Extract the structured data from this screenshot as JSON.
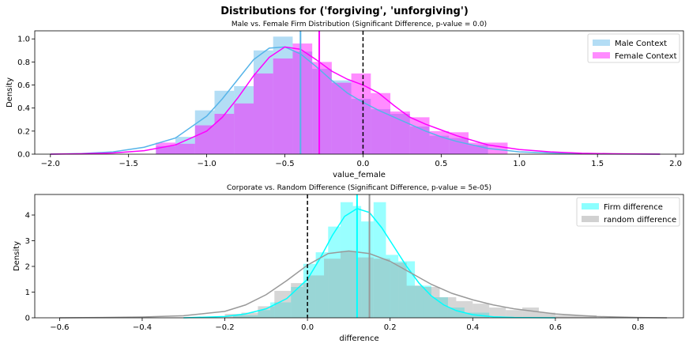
{
  "figure": {
    "suptitle": "Distributions for ('forgiving', 'unforgiving')"
  },
  "chart_data": [
    {
      "type": "bar",
      "title": "Male vs. Female Firm Distribution (Significant Difference, p-value = 0.0)",
      "xlabel": "value_female",
      "ylabel": "Density",
      "xlim": [
        -2.1,
        2.05
      ],
      "ylim": [
        0,
        1.07
      ],
      "xticks": [
        -2.0,
        -1.5,
        -1.0,
        -0.5,
        0.0,
        0.5,
        1.0,
        1.5,
        2.0
      ],
      "xtick_labels": [
        "−2.0",
        "−1.5",
        "−1.0",
        "−0.5",
        "0.0",
        "0.5",
        "1.0",
        "1.5",
        "2.0"
      ],
      "yticks": [
        0.0,
        0.2,
        0.4,
        0.6,
        0.8,
        1.0
      ],
      "ytick_labels": [
        "0.0",
        "0.2",
        "0.4",
        "0.6",
        "0.8",
        "1.0"
      ],
      "legend_position": "top-right",
      "series": [
        {
          "name": "Male Context",
          "color": "#56b4e9",
          "bins": [
            [
              -1.325,
              -1.2,
              0.07
            ],
            [
              -1.2,
              -1.075,
              0.15
            ],
            [
              -1.075,
              -0.95,
              0.38
            ],
            [
              -0.95,
              -0.825,
              0.55
            ],
            [
              -0.825,
              -0.7,
              0.59
            ],
            [
              -0.7,
              -0.575,
              0.9
            ],
            [
              -0.575,
              -0.45,
              1.02
            ],
            [
              -0.45,
              -0.325,
              0.89
            ],
            [
              -0.325,
              -0.2,
              0.74
            ],
            [
              -0.2,
              -0.075,
              0.64
            ],
            [
              -0.075,
              0.05,
              0.48
            ],
            [
              0.05,
              0.175,
              0.39
            ],
            [
              0.175,
              0.3,
              0.35
            ],
            [
              0.3,
              0.425,
              0.24
            ],
            [
              0.425,
              0.55,
              0.16
            ],
            [
              0.55,
              0.675,
              0.14
            ],
            [
              0.675,
              0.8,
              0.08
            ]
          ],
          "kde_x": [
            -2.0,
            -1.8,
            -1.6,
            -1.4,
            -1.2,
            -1.0,
            -0.9,
            -0.8,
            -0.7,
            -0.6,
            -0.5,
            -0.4,
            -0.3,
            -0.2,
            -0.1,
            0.0,
            0.1,
            0.2,
            0.3,
            0.4,
            0.5,
            0.6,
            0.8,
            1.0,
            1.2,
            1.4,
            1.6,
            1.9
          ],
          "kde_y": [
            0.0,
            0.005,
            0.02,
            0.06,
            0.14,
            0.33,
            0.48,
            0.65,
            0.82,
            0.92,
            0.93,
            0.87,
            0.76,
            0.64,
            0.53,
            0.45,
            0.38,
            0.32,
            0.26,
            0.2,
            0.15,
            0.11,
            0.05,
            0.02,
            0.01,
            0.005,
            0.002,
            0.0
          ],
          "mean_line": -0.4
        },
        {
          "name": "Female Context",
          "color": "#ff00ff",
          "bins": [
            [
              -1.325,
              -1.2,
              0.1
            ],
            [
              -1.2,
              -1.075,
              0.09
            ],
            [
              -1.075,
              -0.95,
              0.25
            ],
            [
              -0.95,
              -0.825,
              0.35
            ],
            [
              -0.825,
              -0.7,
              0.44
            ],
            [
              -0.7,
              -0.575,
              0.7
            ],
            [
              -0.575,
              -0.45,
              0.83
            ],
            [
              -0.45,
              -0.325,
              0.96
            ],
            [
              -0.325,
              -0.2,
              0.8
            ],
            [
              -0.2,
              -0.075,
              0.62
            ],
            [
              -0.075,
              0.05,
              0.7
            ],
            [
              0.05,
              0.175,
              0.53
            ],
            [
              0.175,
              0.3,
              0.37
            ],
            [
              0.3,
              0.425,
              0.32
            ],
            [
              0.425,
              0.55,
              0.2
            ],
            [
              0.55,
              0.675,
              0.19
            ],
            [
              0.675,
              0.8,
              0.1
            ],
            [
              0.8,
              0.925,
              0.1
            ]
          ],
          "kde_x": [
            -2.0,
            -1.8,
            -1.6,
            -1.4,
            -1.2,
            -1.0,
            -0.9,
            -0.8,
            -0.7,
            -0.6,
            -0.5,
            -0.4,
            -0.3,
            -0.2,
            -0.1,
            0.0,
            0.1,
            0.2,
            0.3,
            0.4,
            0.5,
            0.6,
            0.8,
            1.0,
            1.2,
            1.4,
            1.6,
            1.9
          ],
          "kde_y": [
            0.0,
            0.003,
            0.01,
            0.03,
            0.08,
            0.2,
            0.32,
            0.49,
            0.68,
            0.84,
            0.93,
            0.91,
            0.82,
            0.72,
            0.65,
            0.6,
            0.53,
            0.42,
            0.32,
            0.26,
            0.21,
            0.16,
            0.08,
            0.04,
            0.02,
            0.008,
            0.003,
            0.0
          ],
          "mean_line": -0.28
        }
      ],
      "reference_line": 0.0
    },
    {
      "type": "bar",
      "title": "Corporate vs. Random Difference (Significant Difference, p-value = 5e-05)",
      "xlabel": "difference",
      "ylabel": "Density",
      "xlim": [
        -0.66,
        0.91
      ],
      "ylim": [
        0,
        4.8
      ],
      "xticks": [
        -0.6,
        -0.4,
        -0.2,
        0.0,
        0.2,
        0.4,
        0.6,
        0.8
      ],
      "xtick_labels": [
        "−0.6",
        "−0.4",
        "−0.2",
        "0.0",
        "0.2",
        "0.4",
        "0.6",
        "0.8"
      ],
      "yticks": [
        0,
        1,
        2,
        3,
        4
      ],
      "ytick_labels": [
        "0",
        "1",
        "2",
        "3",
        "4"
      ],
      "legend_position": "top-right",
      "series": [
        {
          "name": "Firm difference",
          "color": "#00ffff",
          "bins": [
            [
              -0.18,
              -0.12,
              0.1
            ],
            [
              -0.12,
              -0.09,
              0.3
            ],
            [
              -0.09,
              -0.04,
              0.6
            ],
            [
              -0.04,
              -0.01,
              1.2
            ],
            [
              -0.01,
              0.02,
              2.1
            ],
            [
              0.02,
              0.05,
              2.55
            ],
            [
              0.05,
              0.08,
              3.55
            ],
            [
              0.08,
              0.11,
              4.5
            ],
            [
              0.11,
              0.13,
              4.35
            ],
            [
              0.13,
              0.16,
              3.75
            ],
            [
              0.16,
              0.19,
              4.5
            ],
            [
              0.19,
              0.22,
              2.45
            ],
            [
              0.22,
              0.26,
              2.2
            ],
            [
              0.26,
              0.3,
              1.25
            ],
            [
              0.3,
              0.34,
              0.8
            ],
            [
              0.34,
              0.38,
              0.4
            ],
            [
              0.38,
              0.44,
              0.2
            ]
          ],
          "kde_x": [
            -0.3,
            -0.2,
            -0.15,
            -0.1,
            -0.05,
            0.0,
            0.03,
            0.06,
            0.09,
            0.12,
            0.15,
            0.18,
            0.21,
            0.24,
            0.27,
            0.3,
            0.33,
            0.36,
            0.4,
            0.45,
            0.5,
            0.6
          ],
          "kde_y": [
            0.0,
            0.05,
            0.15,
            0.35,
            0.75,
            1.5,
            2.3,
            3.2,
            3.95,
            4.25,
            4.1,
            3.5,
            2.75,
            2.0,
            1.35,
            0.85,
            0.5,
            0.28,
            0.12,
            0.04,
            0.01,
            0.0
          ],
          "mean_line": 0.12
        },
        {
          "name": "random difference",
          "color": "#999999",
          "bins": [
            [
              -0.2,
              -0.16,
              0.15
            ],
            [
              -0.16,
              -0.12,
              0.2
            ],
            [
              -0.12,
              -0.08,
              0.45
            ],
            [
              -0.08,
              -0.04,
              1.05
            ],
            [
              -0.04,
              0.0,
              1.35
            ],
            [
              0.0,
              0.04,
              1.65
            ],
            [
              0.04,
              0.08,
              2.3
            ],
            [
              0.08,
              0.12,
              2.6
            ],
            [
              0.12,
              0.16,
              2.35
            ],
            [
              0.16,
              0.2,
              2.3
            ],
            [
              0.2,
              0.24,
              2.15
            ],
            [
              0.24,
              0.28,
              1.25
            ],
            [
              0.28,
              0.32,
              1.2
            ],
            [
              0.32,
              0.36,
              0.8
            ],
            [
              0.36,
              0.4,
              0.65
            ],
            [
              0.4,
              0.44,
              0.55
            ],
            [
              0.44,
              0.48,
              0.4
            ],
            [
              0.48,
              0.52,
              0.3
            ],
            [
              0.52,
              0.56,
              0.4
            ],
            [
              0.56,
              0.6,
              0.2
            ],
            [
              0.6,
              0.7,
              0.1
            ]
          ],
          "kde_x": [
            -0.6,
            -0.5,
            -0.4,
            -0.3,
            -0.2,
            -0.15,
            -0.1,
            -0.05,
            0.0,
            0.05,
            0.1,
            0.15,
            0.2,
            0.25,
            0.3,
            0.35,
            0.4,
            0.45,
            0.5,
            0.6,
            0.7,
            0.8,
            0.87
          ],
          "kde_y": [
            0.0,
            0.01,
            0.03,
            0.08,
            0.25,
            0.5,
            0.9,
            1.45,
            2.05,
            2.5,
            2.6,
            2.5,
            2.2,
            1.75,
            1.3,
            0.95,
            0.7,
            0.5,
            0.35,
            0.15,
            0.05,
            0.01,
            0.0
          ],
          "mean_line": 0.15
        }
      ],
      "reference_line": 0.0
    }
  ]
}
